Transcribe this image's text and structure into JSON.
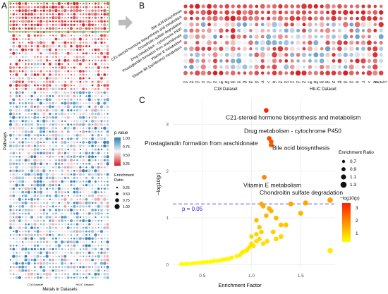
{
  "panel_labels": {
    "a": "A",
    "b": "B",
    "c": "C"
  },
  "panel_a": {
    "ylabel": "Pathways",
    "xlabel": "Metals in Datasets",
    "group_labels": [
      "C18 Dataset",
      "HILIC Dataset"
    ],
    "legend": {
      "pvalue_title": "p value",
      "pvalue_ticks": [
        "1.00",
        "0.75",
        "0.50",
        "0.25"
      ],
      "ratio_title": "Enrichment Ratio",
      "ratio_ticks": [
        "0.25",
        "0.50",
        "0.75",
        "1.00"
      ]
    },
    "colors": {
      "low_p": "#d7191c",
      "mid": "#f7f7f7",
      "high_p": "#2c7bb6",
      "box": "#55cc55"
    }
  },
  "panel_b": {
    "pathways": [
      "Bile acid biosynthesis",
      "C21-steroid hormone biosynthesis and metabolism",
      "Chondroitin sulfate degradation",
      "Drug metabolism - cytochrome P450",
      "Prostaglandin formation from arachidonate",
      "Vitamin E metabolism",
      "Vitamin B6 (pyridoxine) metabolism"
    ],
    "metals": [
      "Ca",
      "Cd",
      "Co",
      "Cr",
      "Cu",
      "Fe",
      "Hg",
      "Mg",
      "Mn",
      "Ni",
      "Pb",
      "Se",
      "Sn",
      "Tl",
      "V",
      "Zn",
      "Ca",
      "Cd",
      "Co",
      "Cu",
      "Fe",
      "Hg",
      "Mg",
      "Mn",
      "Mo",
      "Ni",
      "Pb",
      "Se",
      "Sn",
      "Sr",
      "Tl",
      "V",
      "Zn",
      "Metal P"
    ],
    "group_labels": [
      "C18 Dataset",
      "HILIC Dataset"
    ]
  },
  "chart_data": {
    "type": "scatter",
    "xlabel": "Enrichment Factor",
    "ylabel": "−log10(p)",
    "xlim": [
      0.2,
      1.85
    ],
    "ylim": [
      -0.1,
      3.55
    ],
    "x_ticks": [
      "0.5",
      "1.0",
      "1.5"
    ],
    "y_ticks": [
      "0",
      "1",
      "2",
      "3"
    ],
    "threshold": {
      "y": 1.3,
      "label": "p = 0.05"
    },
    "annotations": [
      {
        "text": "C21-steroid hormone biosynthesis and metabolism",
        "x": 1.15,
        "y": 3.3
      },
      {
        "text": "Drug metabolism - cytochrome P450",
        "x": 1.18,
        "y": 2.7
      },
      {
        "text": "Prostaglandin formation from arachidonate",
        "x": 1.2,
        "y": 2.63
      },
      {
        "text": "Bile acid biosynthesis",
        "x": 1.2,
        "y": 2.56
      },
      {
        "text": "Vitamin E metabolism",
        "x": 1.13,
        "y": 1.87
      },
      {
        "text": "Chondroitin sulfate degradation",
        "x": 1.8,
        "y": 1.38
      }
    ],
    "legend_size": {
      "title": "Enrichment Ratio",
      "ticks": [
        "0.7",
        "0.9",
        "1.1",
        "1.3"
      ]
    },
    "legend_color": {
      "title": "−log10(p)",
      "ticks": [
        "3",
        "2",
        "1"
      ]
    },
    "points": [
      [
        1.15,
        3.3
      ],
      [
        1.18,
        2.7
      ],
      [
        1.2,
        2.63
      ],
      [
        1.2,
        2.56
      ],
      [
        1.13,
        1.87
      ],
      [
        1.8,
        1.38
      ],
      [
        1.8,
        0.3
      ],
      [
        1.3,
        0.85
      ],
      [
        1.4,
        1.3
      ],
      [
        1.55,
        1.32
      ],
      [
        1.5,
        1.1
      ],
      [
        1.2,
        1.15
      ],
      [
        1.25,
        1.0
      ],
      [
        1.1,
        1.3
      ],
      [
        1.05,
        0.95
      ],
      [
        1.08,
        0.8
      ],
      [
        1.12,
        1.25
      ],
      [
        1.18,
        1.2
      ],
      [
        1.22,
        0.7
      ],
      [
        1.25,
        0.55
      ],
      [
        1.3,
        0.6
      ],
      [
        1.35,
        0.85
      ],
      [
        1.16,
        0.5
      ],
      [
        1.12,
        0.45
      ],
      [
        1.05,
        0.5
      ],
      [
        1.0,
        0.45
      ],
      [
        1.02,
        0.4
      ],
      [
        0.98,
        0.38
      ],
      [
        1.05,
        0.65
      ],
      [
        0.95,
        0.3
      ],
      [
        0.9,
        0.25
      ],
      [
        0.88,
        0.2
      ],
      [
        0.85,
        0.18
      ],
      [
        0.8,
        0.15
      ],
      [
        0.75,
        0.12
      ],
      [
        0.7,
        0.1
      ],
      [
        0.65,
        0.08
      ],
      [
        0.6,
        0.07
      ],
      [
        0.55,
        0.06
      ],
      [
        0.5,
        0.05
      ],
      [
        0.45,
        0.04
      ],
      [
        0.4,
        0.03
      ],
      [
        0.35,
        0.02
      ],
      [
        0.3,
        0.01
      ],
      [
        0.92,
        0.28
      ],
      [
        0.96,
        0.33
      ],
      [
        1.0,
        0.6
      ],
      [
        1.08,
        0.55
      ],
      [
        1.1,
        0.7
      ],
      [
        1.15,
        1.05
      ],
      [
        0.78,
        0.13
      ],
      [
        0.72,
        0.11
      ],
      [
        0.68,
        0.09
      ],
      [
        0.62,
        0.08
      ],
      [
        0.58,
        0.06
      ],
      [
        0.52,
        0.05
      ],
      [
        0.48,
        0.04
      ],
      [
        0.42,
        0.03
      ],
      [
        0.38,
        0.02
      ],
      [
        0.33,
        0.015
      ],
      [
        0.28,
        0.01
      ]
    ]
  }
}
